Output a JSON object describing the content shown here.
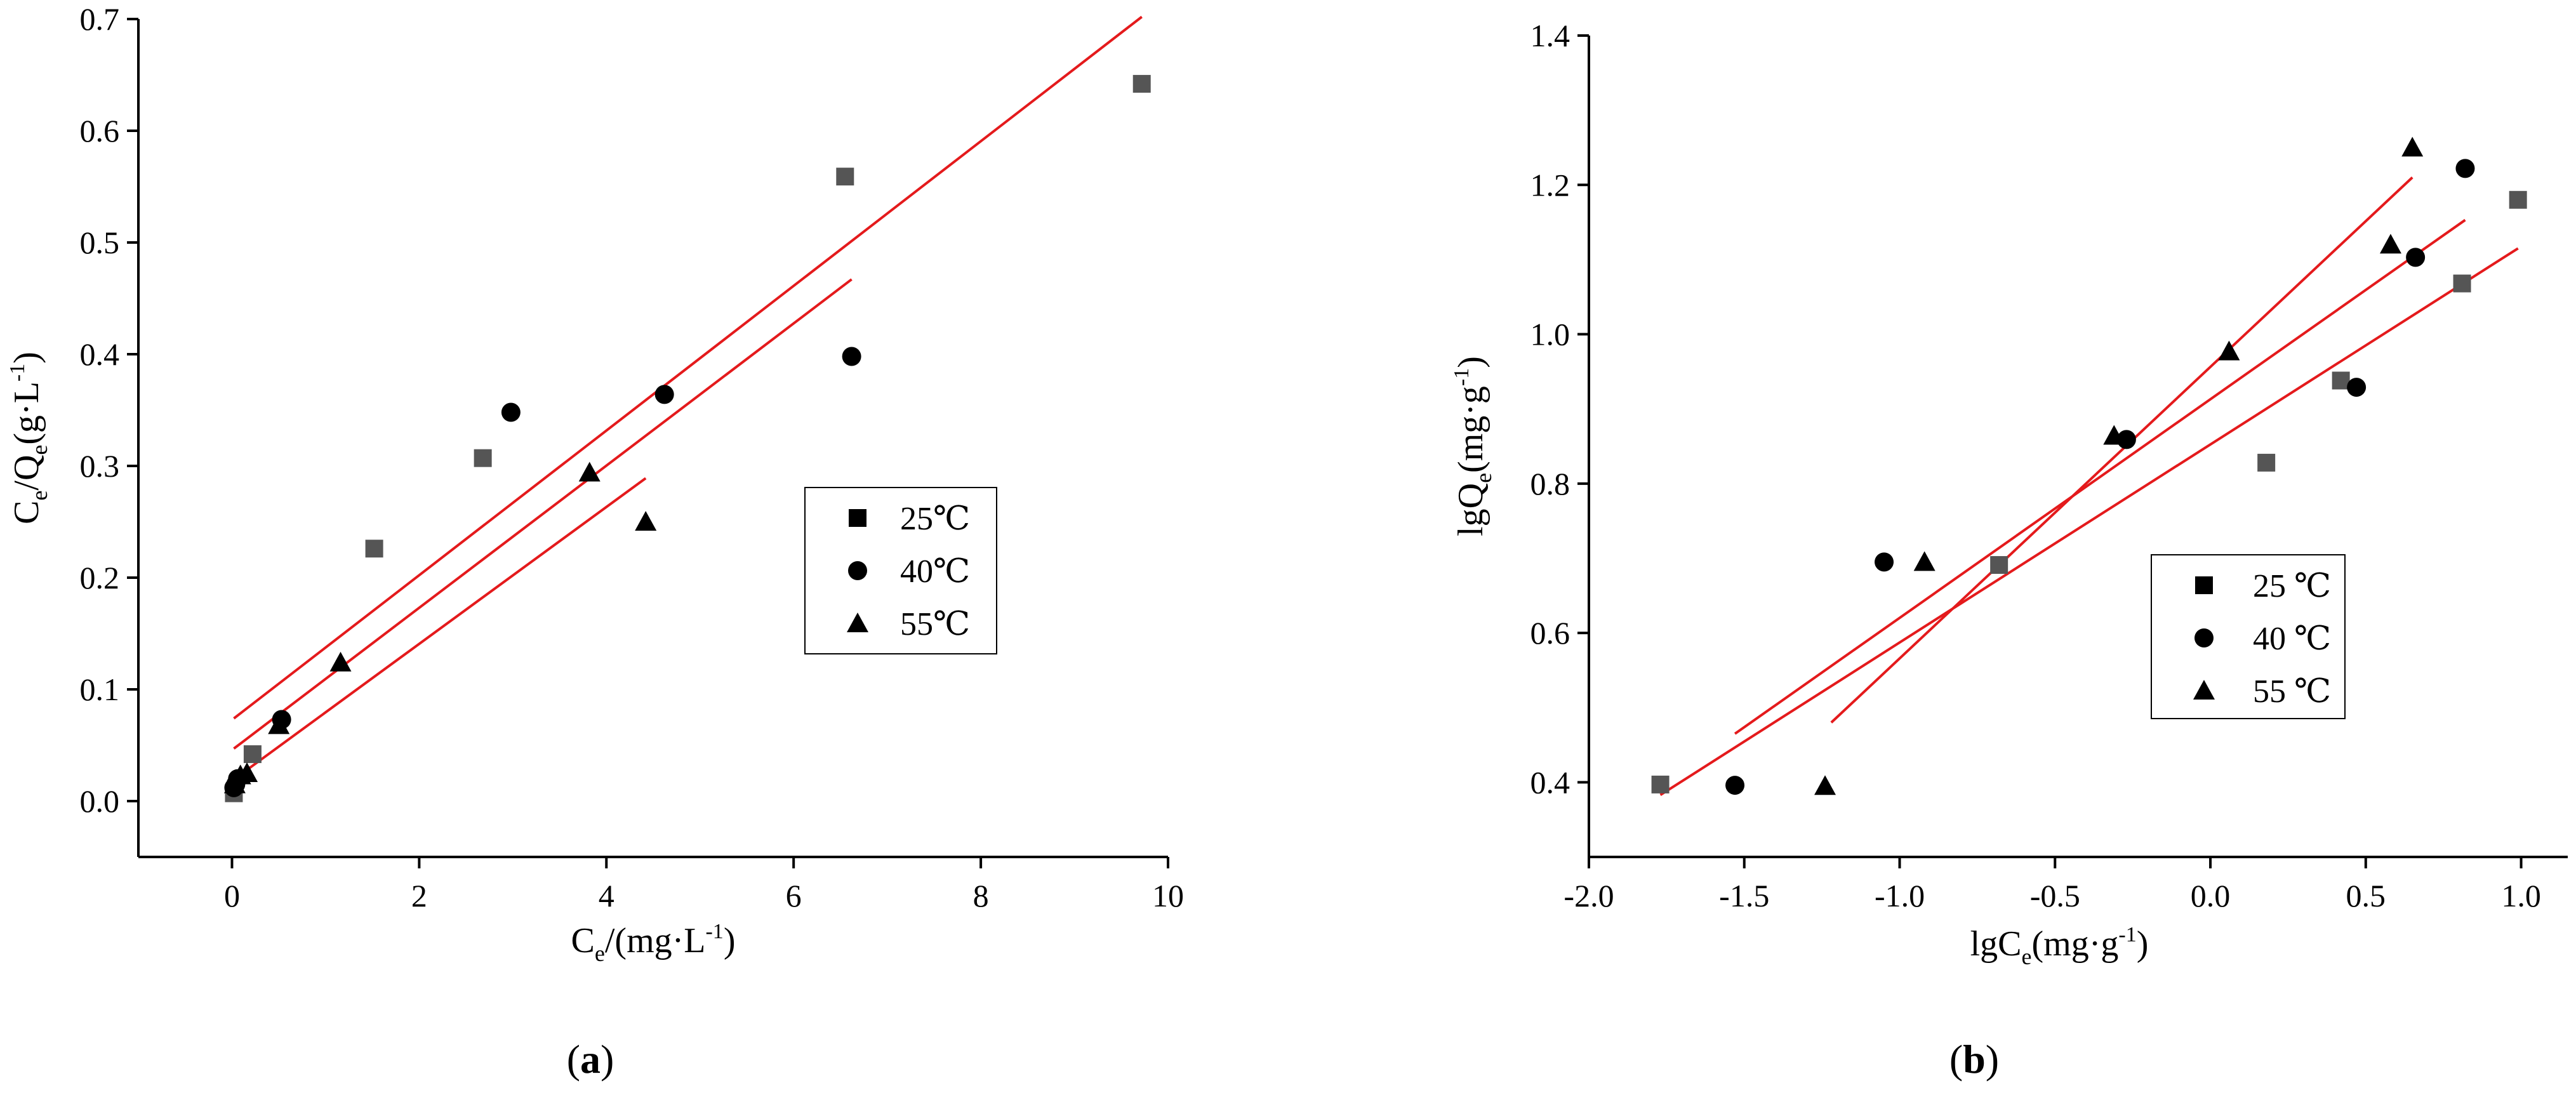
{
  "chart_data": [
    {
      "type": "scatter",
      "panel_label": {
        "open": "(",
        "letter": "a",
        "close": ")"
      },
      "xlabel": {
        "base": "C",
        "sub": "e",
        "text": "/(mg·L",
        "sup": "-1",
        "tail": ")"
      },
      "ylabel": {
        "base": "C",
        "sub": "e",
        "mid": "/Q",
        "sub2": "e",
        "text": "(g·L",
        "sup": "-1",
        "tail": ")"
      },
      "xlim": [
        -1,
        10
      ],
      "ylim": [
        -0.05,
        0.7
      ],
      "xticks": [
        0,
        2,
        4,
        6,
        8,
        10
      ],
      "xtick_labels": [
        "0",
        "2",
        "4",
        "6",
        "8",
        "10"
      ],
      "yticks": [
        0.0,
        0.1,
        0.2,
        0.3,
        0.4,
        0.5,
        0.6,
        0.7
      ],
      "ytick_labels": [
        "0.0",
        "0.1",
        "0.2",
        "0.3",
        "0.4",
        "0.5",
        "0.6",
        "0.7"
      ],
      "grid": false,
      "legend_position": "right-middle",
      "series": [
        {
          "name": "25℃",
          "marker": "square",
          "color": "#555555",
          "points": [
            [
              0.02,
              0.007
            ],
            [
              0.22,
              0.042
            ],
            [
              1.52,
              0.226
            ],
            [
              2.68,
              0.307
            ],
            [
              6.55,
              0.559
            ],
            [
              9.72,
              0.642
            ]
          ],
          "fit": [
            [
              0.02,
              0.074
            ],
            [
              9.72,
              0.702
            ]
          ]
        },
        {
          "name": "40℃",
          "marker": "circle",
          "color": "#000000",
          "points": [
            [
              0.02,
              0.012
            ],
            [
              0.04,
              0.015
            ],
            [
              0.06,
              0.02
            ],
            [
              0.53,
              0.073
            ],
            [
              2.98,
              0.348
            ],
            [
              4.62,
              0.364
            ],
            [
              6.62,
              0.398
            ]
          ],
          "fit": [
            [
              0.02,
              0.047
            ],
            [
              6.62,
              0.467
            ]
          ]
        },
        {
          "name": "55℃",
          "marker": "triangle",
          "color": "#000000",
          "points": [
            [
              0.03,
              0.015
            ],
            [
              0.09,
              0.023
            ],
            [
              0.16,
              0.025
            ],
            [
              0.5,
              0.068
            ],
            [
              1.16,
              0.124
            ],
            [
              3.82,
              0.294
            ],
            [
              4.42,
              0.25
            ]
          ],
          "fit": [
            [
              0.03,
              0.02
            ],
            [
              4.42,
              0.289
            ]
          ]
        }
      ]
    },
    {
      "type": "scatter",
      "panel_label": {
        "open": "(",
        "letter": "b",
        "close": ")"
      },
      "xlabel": {
        "base": "lgC",
        "sub": "e",
        "text": "(mg·g",
        "sup": "-1",
        "tail": ")"
      },
      "ylabel": {
        "base": "lgQ",
        "sub": "e",
        "text": "(mg·g",
        "sup": "-1",
        "tail": ")"
      },
      "xlim": [
        -2.0,
        1.15
      ],
      "ylim": [
        0.3,
        1.4
      ],
      "xticks": [
        -2.0,
        -1.5,
        -1.0,
        -0.5,
        0.0,
        0.5,
        1.0
      ],
      "xtick_labels": [
        "-2.0",
        "-1.5",
        "-1.0",
        "-0.5",
        "0.0",
        "0.5",
        "1.0"
      ],
      "yticks": [
        0.4,
        0.6,
        0.8,
        1.0,
        1.2,
        1.4
      ],
      "ytick_labels": [
        "0.4",
        "0.6",
        "0.8",
        "1.0",
        "1.2",
        "1.4"
      ],
      "grid": false,
      "legend_position": "bottom-right",
      "series": [
        {
          "name": "25 ℃",
          "marker": "square",
          "color": "#555555",
          "points": [
            [
              -1.77,
              0.397
            ],
            [
              -0.68,
              0.691
            ],
            [
              0.18,
              0.828
            ],
            [
              0.42,
              0.938
            ],
            [
              0.81,
              1.068
            ],
            [
              0.99,
              1.18
            ]
          ],
          "fit": [
            [
              -1.77,
              0.383
            ],
            [
              0.99,
              1.115
            ]
          ]
        },
        {
          "name": "40 ℃",
          "marker": "circle",
          "color": "#000000",
          "points": [
            [
              -1.53,
              0.396
            ],
            [
              -1.05,
              0.695
            ],
            [
              -0.27,
              0.859
            ],
            [
              0.47,
              0.929
            ],
            [
              0.66,
              1.103
            ],
            [
              0.82,
              1.222
            ]
          ],
          "fit": [
            [
              -1.53,
              0.465
            ],
            [
              0.82,
              1.153
            ]
          ]
        },
        {
          "name": "55 ℃",
          "marker": "triangle",
          "color": "#000000",
          "points": [
            [
              -1.24,
              0.395
            ],
            [
              -0.92,
              0.695
            ],
            [
              -0.31,
              0.864
            ],
            [
              0.06,
              0.977
            ],
            [
              0.58,
              1.12
            ],
            [
              0.65,
              1.25
            ]
          ],
          "fit": [
            [
              -1.22,
              0.48
            ],
            [
              0.65,
              1.21
            ]
          ]
        }
      ]
    }
  ]
}
